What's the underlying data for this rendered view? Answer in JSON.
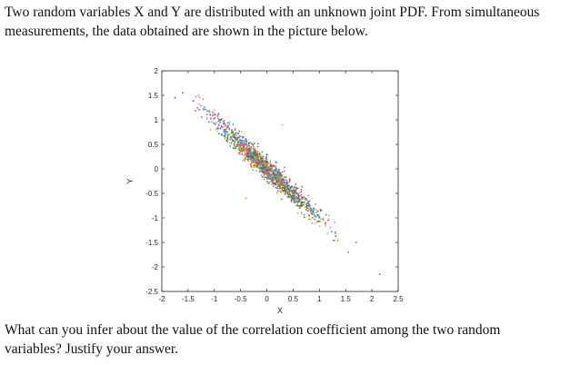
{
  "question_intro": {
    "line1": "Two random variables X and Y are distributed with an unknown joint PDF. From simultaneous",
    "line2": "measurements, the data obtained are shown in the picture below."
  },
  "question_prompt": {
    "line1": "What can you infer about the value of the correlation coefficient among the two random",
    "line2": "variables? Justify your answer."
  },
  "chart_data": {
    "type": "scatter",
    "title": "",
    "xlabel": "X",
    "ylabel": "Y",
    "xlim": [
      -2,
      2.5
    ],
    "ylim": [
      -2.5,
      2
    ],
    "xticks": [
      "-2",
      "-1.5",
      "-1",
      "-0.5",
      "0",
      "0.5",
      "1",
      "1.5",
      "2",
      "2.5"
    ],
    "yticks": [
      "2",
      "1.5",
      "1",
      "0.5",
      "0",
      "-0.5",
      "-1",
      "-1.5",
      "-2",
      "-2.5"
    ],
    "grid": false,
    "legend": "none",
    "trend": {
      "slope": -1.0,
      "intercept": 0.0,
      "x_range": [
        -1.4,
        1.4
      ],
      "spread": 0.11
    },
    "outliers": [
      {
        "x": -1.75,
        "y": 1.45
      },
      {
        "x": -1.6,
        "y": 1.55
      },
      {
        "x": -1.3,
        "y": 1.5
      },
      {
        "x": 1.55,
        "y": -1.7
      },
      {
        "x": 1.7,
        "y": -1.5
      },
      {
        "x": 2.15,
        "y": -2.15
      },
      {
        "x": 0.3,
        "y": 0.9
      },
      {
        "x": -0.4,
        "y": -0.6
      }
    ],
    "colors": [
      "#1f77b4",
      "#ff7f0e",
      "#2ca02c",
      "#d62728",
      "#9467bd",
      "#8c564b",
      "#e377c2",
      "#17becf",
      "#bcbd22",
      "#7f7f7f"
    ]
  }
}
